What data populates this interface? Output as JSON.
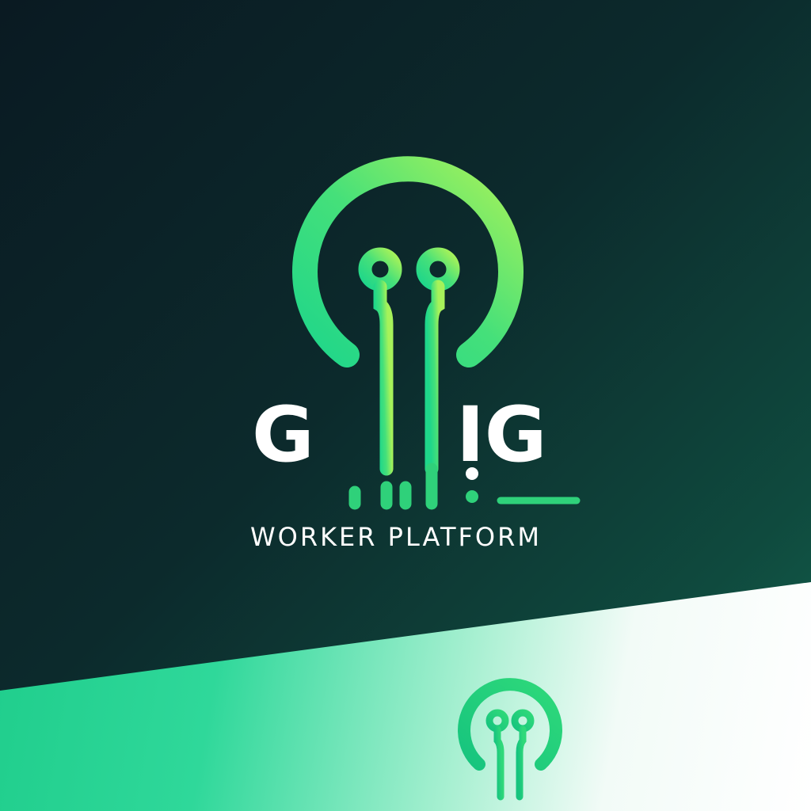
{
  "brand": {
    "wordmark_left": "G",
    "wordmark_right": "IG",
    "tagline": "WORKER PLATFORM"
  },
  "colors": {
    "background_dark": "#0b1f24",
    "accent_green": "#2fd17a",
    "accent_lime": "#8ef05a",
    "text": "#ffffff",
    "light_panel": "#ffffff"
  },
  "icons": {
    "main_logo": "circuit-lightbulb-icon",
    "small_logo": "circuit-lightbulb-icon"
  }
}
